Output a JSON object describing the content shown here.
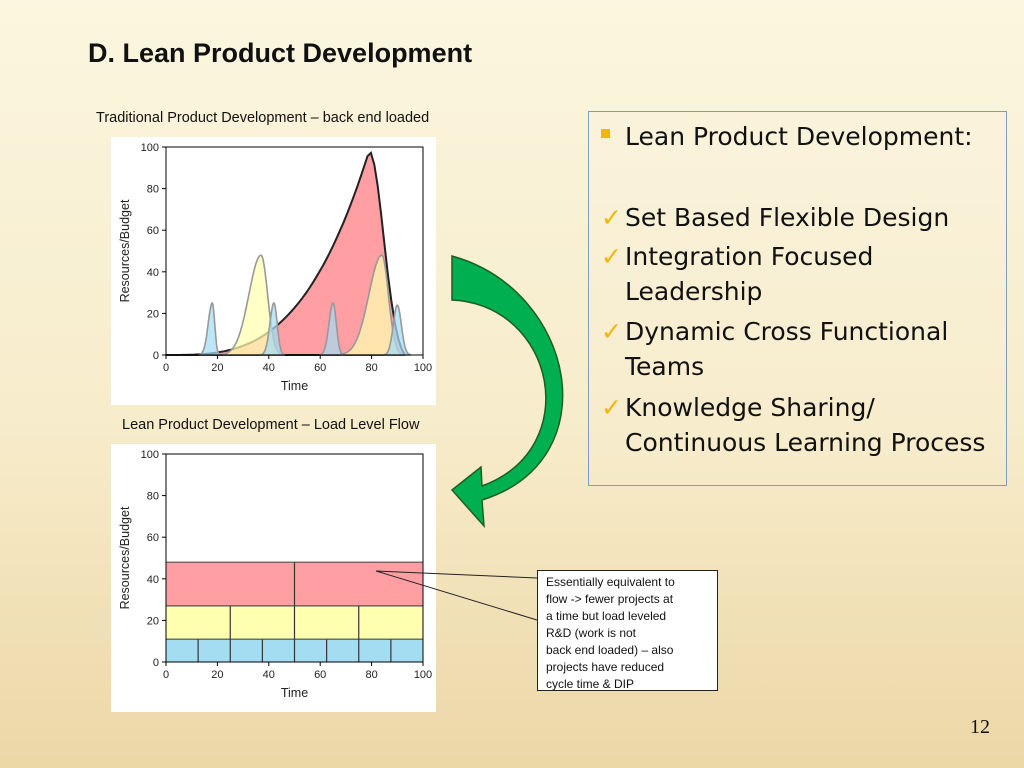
{
  "slide": {
    "title": "D. Lean Product Development",
    "page_number": "12"
  },
  "bullets": {
    "heading": "Lean Product Development:",
    "items": [
      [
        "Set Based Flexible Design"
      ],
      [
        "Integration Focused",
        "Leadership"
      ],
      [
        "Dynamic Cross Functional",
        "Teams"
      ],
      [
        "Knowledge Sharing/",
        "Continuous Learning Process"
      ]
    ]
  },
  "note": {
    "lines": [
      "Essentially equivalent to",
      "flow -> fewer projects at",
      "a time but load leveled",
      "R&D (work is not",
      "back end loaded) – also",
      "projects have reduced",
      "cycle time & DIP"
    ]
  },
  "colors": {
    "red": "#ff9fa4",
    "yellow": "#ffffb0",
    "blue": "#a4dcf2",
    "arrow_green": "#00b050",
    "bullet_gold": "#f2b705"
  },
  "chart_data": [
    {
      "type": "area",
      "title": "Traditional Product Development – back end loaded",
      "xlabel": "Time",
      "ylabel": "Resources/Budget",
      "xlim": [
        0,
        100
      ],
      "ylim": [
        0,
        100
      ],
      "xticks": [
        "0",
        "20",
        "40",
        "60",
        "80",
        "100"
      ],
      "yticks": [
        "0",
        "20",
        "40",
        "60",
        "80",
        "100"
      ],
      "series": [
        {
          "color": "red",
          "shape": "skewed_peak",
          "start": 0,
          "peak_x": 79,
          "peak_y": 98,
          "end": 93
        },
        {
          "color": "yellow",
          "shape": "peak",
          "start": 22,
          "peak_x": 37,
          "peak_y": 48,
          "end": 45
        },
        {
          "color": "blue",
          "shape": "peak",
          "start": 13,
          "peak_x": 18,
          "peak_y": 25,
          "end": 21
        },
        {
          "color": "blue",
          "shape": "peak",
          "start": 37,
          "peak_x": 42,
          "peak_y": 25,
          "end": 46
        },
        {
          "color": "blue",
          "shape": "peak",
          "start": 60,
          "peak_x": 65,
          "peak_y": 25,
          "end": 69
        },
        {
          "color": "yellow",
          "shape": "peak",
          "start": 68,
          "peak_x": 84,
          "peak_y": 48,
          "end": 92
        },
        {
          "color": "blue",
          "shape": "peak",
          "start": 85,
          "peak_x": 90,
          "peak_y": 24,
          "end": 95
        }
      ]
    },
    {
      "type": "area",
      "title": "Lean Product Development – Load Level Flow",
      "xlabel": "Time",
      "ylabel": "Resources/Budget",
      "xlim": [
        0,
        100
      ],
      "ylim": [
        0,
        100
      ],
      "xticks": [
        "0",
        "20",
        "40",
        "60",
        "80",
        "100"
      ],
      "yticks": [
        "0",
        "20",
        "40",
        "60",
        "80",
        "100"
      ],
      "bands": [
        {
          "color": "blue",
          "y0": 0,
          "y1": 11,
          "dividers": [
            12.5,
            25,
            37.5,
            50,
            62.5,
            75,
            87.5
          ]
        },
        {
          "color": "yellow",
          "y0": 11,
          "y1": 27,
          "dividers": [
            25,
            50,
            75
          ]
        },
        {
          "color": "red",
          "y0": 27,
          "y1": 48,
          "dividers": [
            50
          ]
        }
      ]
    }
  ]
}
